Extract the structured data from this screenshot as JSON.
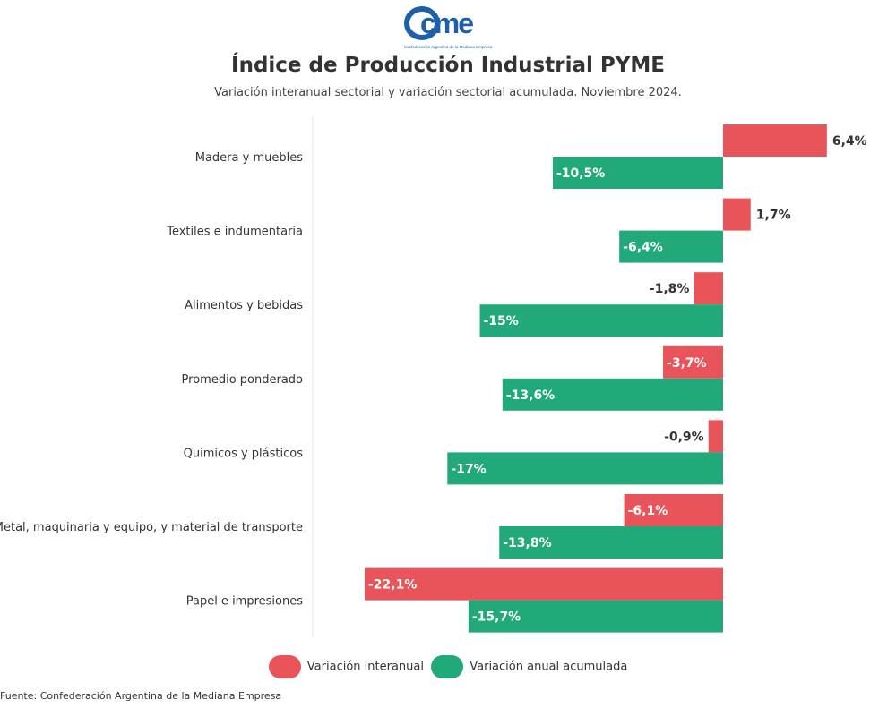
{
  "logo": {
    "text": "cme",
    "tagline": "Confederación Argentina de la Mediana Empresa",
    "color": "#1d5fa8"
  },
  "title": "Índice de Producción Industrial PYME",
  "subtitle": "Variación interanual sectorial y variación sectorial acumulada. Noviembre 2024.",
  "source": "Fuente: Confederación Argentina de la Mediana Empresa",
  "chart_data": {
    "type": "bar",
    "orientation": "horizontal",
    "categories": [
      "Madera y muebles",
      "Textiles e indumentaria",
      "Alimentos y bebidas",
      "Promedio ponderado",
      "Quimicos y plásticos",
      "Metal, maquinaria y equipo, y material de transporte",
      "Papel e impresiones"
    ],
    "series": [
      {
        "name": "Variación interanual",
        "color": "#e8545a",
        "values": [
          6.4,
          1.7,
          -1.8,
          -3.7,
          -0.9,
          -6.1,
          -22.1
        ],
        "labels": [
          "6,4%",
          "1,7%",
          "-1,8%",
          "-3,7%",
          "-0,9%",
          "-6,1%",
          "-22,1%"
        ]
      },
      {
        "name": "Variación anual acumulada",
        "color": "#21a97a",
        "values": [
          -10.5,
          -6.4,
          -15,
          -13.6,
          -17,
          -13.8,
          -15.7
        ],
        "labels": [
          "-10,5%",
          "-6,4%",
          "-15%",
          "-13,6%",
          "-17%",
          "-13,8%",
          "-15,7%"
        ]
      }
    ],
    "xlim": [
      -25,
      7
    ],
    "grid": false,
    "legend": "bottom"
  }
}
